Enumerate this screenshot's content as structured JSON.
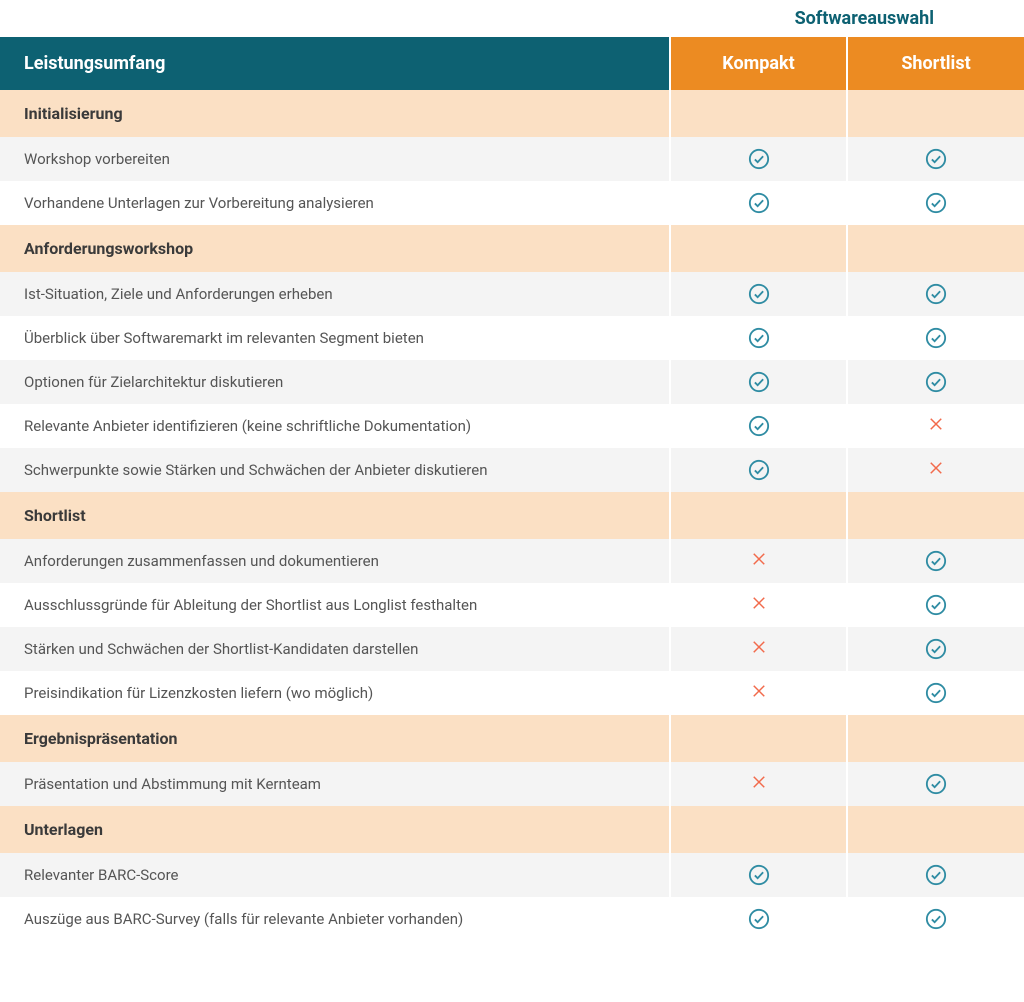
{
  "superHeader": "Softwareauswahl",
  "colors": {
    "featureHeaderBg": "#0d6172",
    "planHeaderBg": "#ec8b22",
    "sectionBg": "#fbe0c4",
    "rowAltBg": "#f4f4f4",
    "rowBg": "#ffffff",
    "checkColor": "#2f8ca3",
    "crossColor": "#f26a4b",
    "superHeaderColor": "#0d6172",
    "textColor": "#555555",
    "sectionTextColor": "#3a3a3a"
  },
  "header": {
    "feature": "Leistungsumfang",
    "plans": [
      "Kompakt",
      "Shortlist"
    ]
  },
  "sections": [
    {
      "title": "Initialisierung",
      "rows": [
        {
          "label": "Workshop vorbereiten",
          "marks": [
            "check",
            "check"
          ]
        },
        {
          "label": "Vorhandene Unterlagen zur Vorbereitung analysieren",
          "marks": [
            "check",
            "check"
          ]
        }
      ]
    },
    {
      "title": "Anforderungsworkshop",
      "rows": [
        {
          "label": "Ist-Situation, Ziele und Anforderungen erheben",
          "marks": [
            "check",
            "check"
          ]
        },
        {
          "label": "Überblick über Softwaremarkt im relevanten Segment bieten",
          "marks": [
            "check",
            "check"
          ]
        },
        {
          "label": "Optionen für Zielarchitektur diskutieren",
          "marks": [
            "check",
            "check"
          ]
        },
        {
          "label": "Relevante Anbieter identifizieren (keine schriftliche Dokumentation)",
          "marks": [
            "check",
            "cross"
          ]
        },
        {
          "label": "Schwerpunkte sowie Stärken und Schwächen der Anbieter diskutieren",
          "marks": [
            "check",
            "cross"
          ]
        }
      ]
    },
    {
      "title": "Shortlist",
      "rows": [
        {
          "label": "Anforderungen zusammenfassen und dokumentieren",
          "marks": [
            "cross",
            "check"
          ]
        },
        {
          "label": "Ausschlussgründe für Ableitung der Shortlist aus Longlist festhalten",
          "marks": [
            "cross",
            "check"
          ]
        },
        {
          "label": "Stärken und Schwächen der Shortlist-Kandidaten darstellen",
          "marks": [
            "cross",
            "check"
          ]
        },
        {
          "label": "Preisindikation für Lizenzkosten liefern (wo möglich)",
          "marks": [
            "cross",
            "check"
          ]
        }
      ]
    },
    {
      "title": "Ergebnispräsentation",
      "rows": [
        {
          "label": "Präsentation und Abstimmung mit Kernteam",
          "marks": [
            "cross",
            "check"
          ]
        }
      ]
    },
    {
      "title": "Unterlagen",
      "rows": [
        {
          "label": "Relevanter BARC-Score",
          "marks": [
            "check",
            "check"
          ]
        },
        {
          "label": "Auszüge aus BARC-Survey (falls für relevante Anbieter vorhanden)",
          "marks": [
            "check",
            "check"
          ]
        }
      ]
    }
  ]
}
